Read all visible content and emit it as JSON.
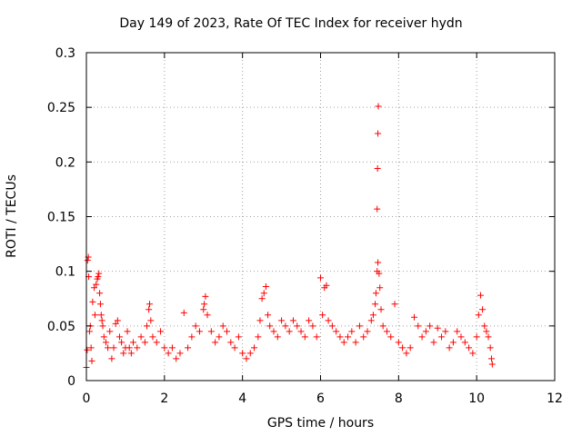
{
  "chart_data": {
    "type": "scatter",
    "title": "Day 149 of 2023, Rate Of TEC Index for receiver hydn",
    "xlabel": "GPS time / hours",
    "ylabel": "ROTI / TECUs",
    "xlim": [
      0,
      12
    ],
    "ylim": [
      0,
      0.3
    ],
    "x_ticks": [
      "0",
      "2",
      "4",
      "6",
      "8",
      "10",
      "12"
    ],
    "y_ticks": [
      "0",
      "0.05",
      "0.1",
      "0.15",
      "0.2",
      "0.25",
      "0.3"
    ],
    "grid": true,
    "marker": "+",
    "color": "#ff0000",
    "series": [
      {
        "points": [
          [
            0.0,
            0.012
          ],
          [
            0.02,
            0.028
          ],
          [
            0.03,
            0.11
          ],
          [
            0.05,
            0.113
          ],
          [
            0.06,
            0.095
          ],
          [
            0.08,
            0.045
          ],
          [
            0.1,
            0.05
          ],
          [
            0.12,
            0.03
          ],
          [
            0.14,
            0.018
          ],
          [
            0.16,
            0.072
          ],
          [
            0.2,
            0.085
          ],
          [
            0.22,
            0.06
          ],
          [
            0.25,
            0.088
          ],
          [
            0.28,
            0.093
          ],
          [
            0.3,
            0.095
          ],
          [
            0.32,
            0.098
          ],
          [
            0.34,
            0.08
          ],
          [
            0.36,
            0.07
          ],
          [
            0.38,
            0.06
          ],
          [
            0.4,
            0.055
          ],
          [
            0.42,
            0.05
          ],
          [
            0.45,
            0.04
          ],
          [
            0.5,
            0.035
          ],
          [
            0.55,
            0.03
          ],
          [
            0.6,
            0.045
          ],
          [
            0.65,
            0.02
          ],
          [
            0.7,
            0.03
          ],
          [
            0.75,
            0.052
          ],
          [
            0.8,
            0.055
          ],
          [
            0.85,
            0.04
          ],
          [
            0.9,
            0.035
          ],
          [
            0.95,
            0.025
          ],
          [
            1.0,
            0.03
          ],
          [
            1.05,
            0.045
          ],
          [
            1.1,
            0.03
          ],
          [
            1.15,
            0.025
          ],
          [
            1.2,
            0.035
          ],
          [
            1.3,
            0.03
          ],
          [
            1.4,
            0.04
          ],
          [
            1.5,
            0.035
          ],
          [
            1.55,
            0.05
          ],
          [
            1.6,
            0.065
          ],
          [
            1.62,
            0.07
          ],
          [
            1.65,
            0.055
          ],
          [
            1.7,
            0.04
          ],
          [
            1.8,
            0.035
          ],
          [
            1.9,
            0.045
          ],
          [
            2.0,
            0.03
          ],
          [
            2.1,
            0.025
          ],
          [
            2.2,
            0.03
          ],
          [
            2.3,
            0.02
          ],
          [
            2.4,
            0.025
          ],
          [
            2.5,
            0.062
          ],
          [
            2.6,
            0.03
          ],
          [
            2.7,
            0.04
          ],
          [
            2.8,
            0.05
          ],
          [
            2.9,
            0.045
          ],
          [
            3.0,
            0.065
          ],
          [
            3.02,
            0.07
          ],
          [
            3.05,
            0.077
          ],
          [
            3.1,
            0.06
          ],
          [
            3.2,
            0.045
          ],
          [
            3.3,
            0.035
          ],
          [
            3.4,
            0.04
          ],
          [
            3.5,
            0.05
          ],
          [
            3.6,
            0.045
          ],
          [
            3.7,
            0.035
          ],
          [
            3.8,
            0.03
          ],
          [
            3.9,
            0.04
          ],
          [
            4.0,
            0.025
          ],
          [
            4.1,
            0.02
          ],
          [
            4.2,
            0.025
          ],
          [
            4.3,
            0.03
          ],
          [
            4.4,
            0.04
          ],
          [
            4.45,
            0.055
          ],
          [
            4.5,
            0.075
          ],
          [
            4.55,
            0.08
          ],
          [
            4.6,
            0.086
          ],
          [
            4.65,
            0.06
          ],
          [
            4.7,
            0.05
          ],
          [
            4.8,
            0.045
          ],
          [
            4.9,
            0.04
          ],
          [
            5.0,
            0.055
          ],
          [
            5.1,
            0.05
          ],
          [
            5.2,
            0.045
          ],
          [
            5.3,
            0.055
          ],
          [
            5.4,
            0.05
          ],
          [
            5.5,
            0.045
          ],
          [
            5.6,
            0.04
          ],
          [
            5.7,
            0.055
          ],
          [
            5.8,
            0.05
          ],
          [
            5.9,
            0.04
          ],
          [
            6.0,
            0.094
          ],
          [
            6.05,
            0.06
          ],
          [
            6.1,
            0.085
          ],
          [
            6.15,
            0.087
          ],
          [
            6.2,
            0.055
          ],
          [
            6.3,
            0.05
          ],
          [
            6.4,
            0.045
          ],
          [
            6.5,
            0.04
          ],
          [
            6.6,
            0.035
          ],
          [
            6.7,
            0.04
          ],
          [
            6.8,
            0.045
          ],
          [
            6.9,
            0.035
          ],
          [
            7.0,
            0.05
          ],
          [
            7.1,
            0.04
          ],
          [
            7.2,
            0.045
          ],
          [
            7.3,
            0.055
          ],
          [
            7.35,
            0.06
          ],
          [
            7.4,
            0.07
          ],
          [
            7.42,
            0.08
          ],
          [
            7.45,
            0.1
          ],
          [
            7.47,
            0.108
          ],
          [
            7.5,
            0.098
          ],
          [
            7.52,
            0.085
          ],
          [
            7.55,
            0.065
          ],
          [
            7.6,
            0.05
          ],
          [
            7.7,
            0.045
          ],
          [
            7.8,
            0.04
          ],
          [
            7.9,
            0.07
          ],
          [
            8.0,
            0.035
          ],
          [
            8.1,
            0.03
          ],
          [
            8.2,
            0.025
          ],
          [
            8.3,
            0.03
          ],
          [
            8.4,
            0.058
          ],
          [
            8.5,
            0.05
          ],
          [
            8.6,
            0.04
          ],
          [
            8.7,
            0.045
          ],
          [
            8.8,
            0.05
          ],
          [
            8.9,
            0.035
          ],
          [
            9.0,
            0.048
          ],
          [
            9.1,
            0.04
          ],
          [
            9.2,
            0.045
          ],
          [
            9.3,
            0.03
          ],
          [
            9.4,
            0.035
          ],
          [
            9.5,
            0.045
          ],
          [
            9.6,
            0.04
          ],
          [
            9.7,
            0.035
          ],
          [
            9.8,
            0.03
          ],
          [
            9.9,
            0.025
          ],
          [
            10.0,
            0.04
          ],
          [
            10.05,
            0.06
          ],
          [
            10.1,
            0.078
          ],
          [
            10.15,
            0.065
          ],
          [
            10.2,
            0.05
          ],
          [
            10.25,
            0.045
          ],
          [
            10.3,
            0.04
          ],
          [
            10.35,
            0.03
          ],
          [
            10.38,
            0.02
          ],
          [
            10.4,
            0.015
          ],
          [
            7.45,
            0.157
          ],
          [
            7.46,
            0.194
          ],
          [
            7.47,
            0.226
          ],
          [
            7.48,
            0.251
          ]
        ]
      }
    ]
  }
}
